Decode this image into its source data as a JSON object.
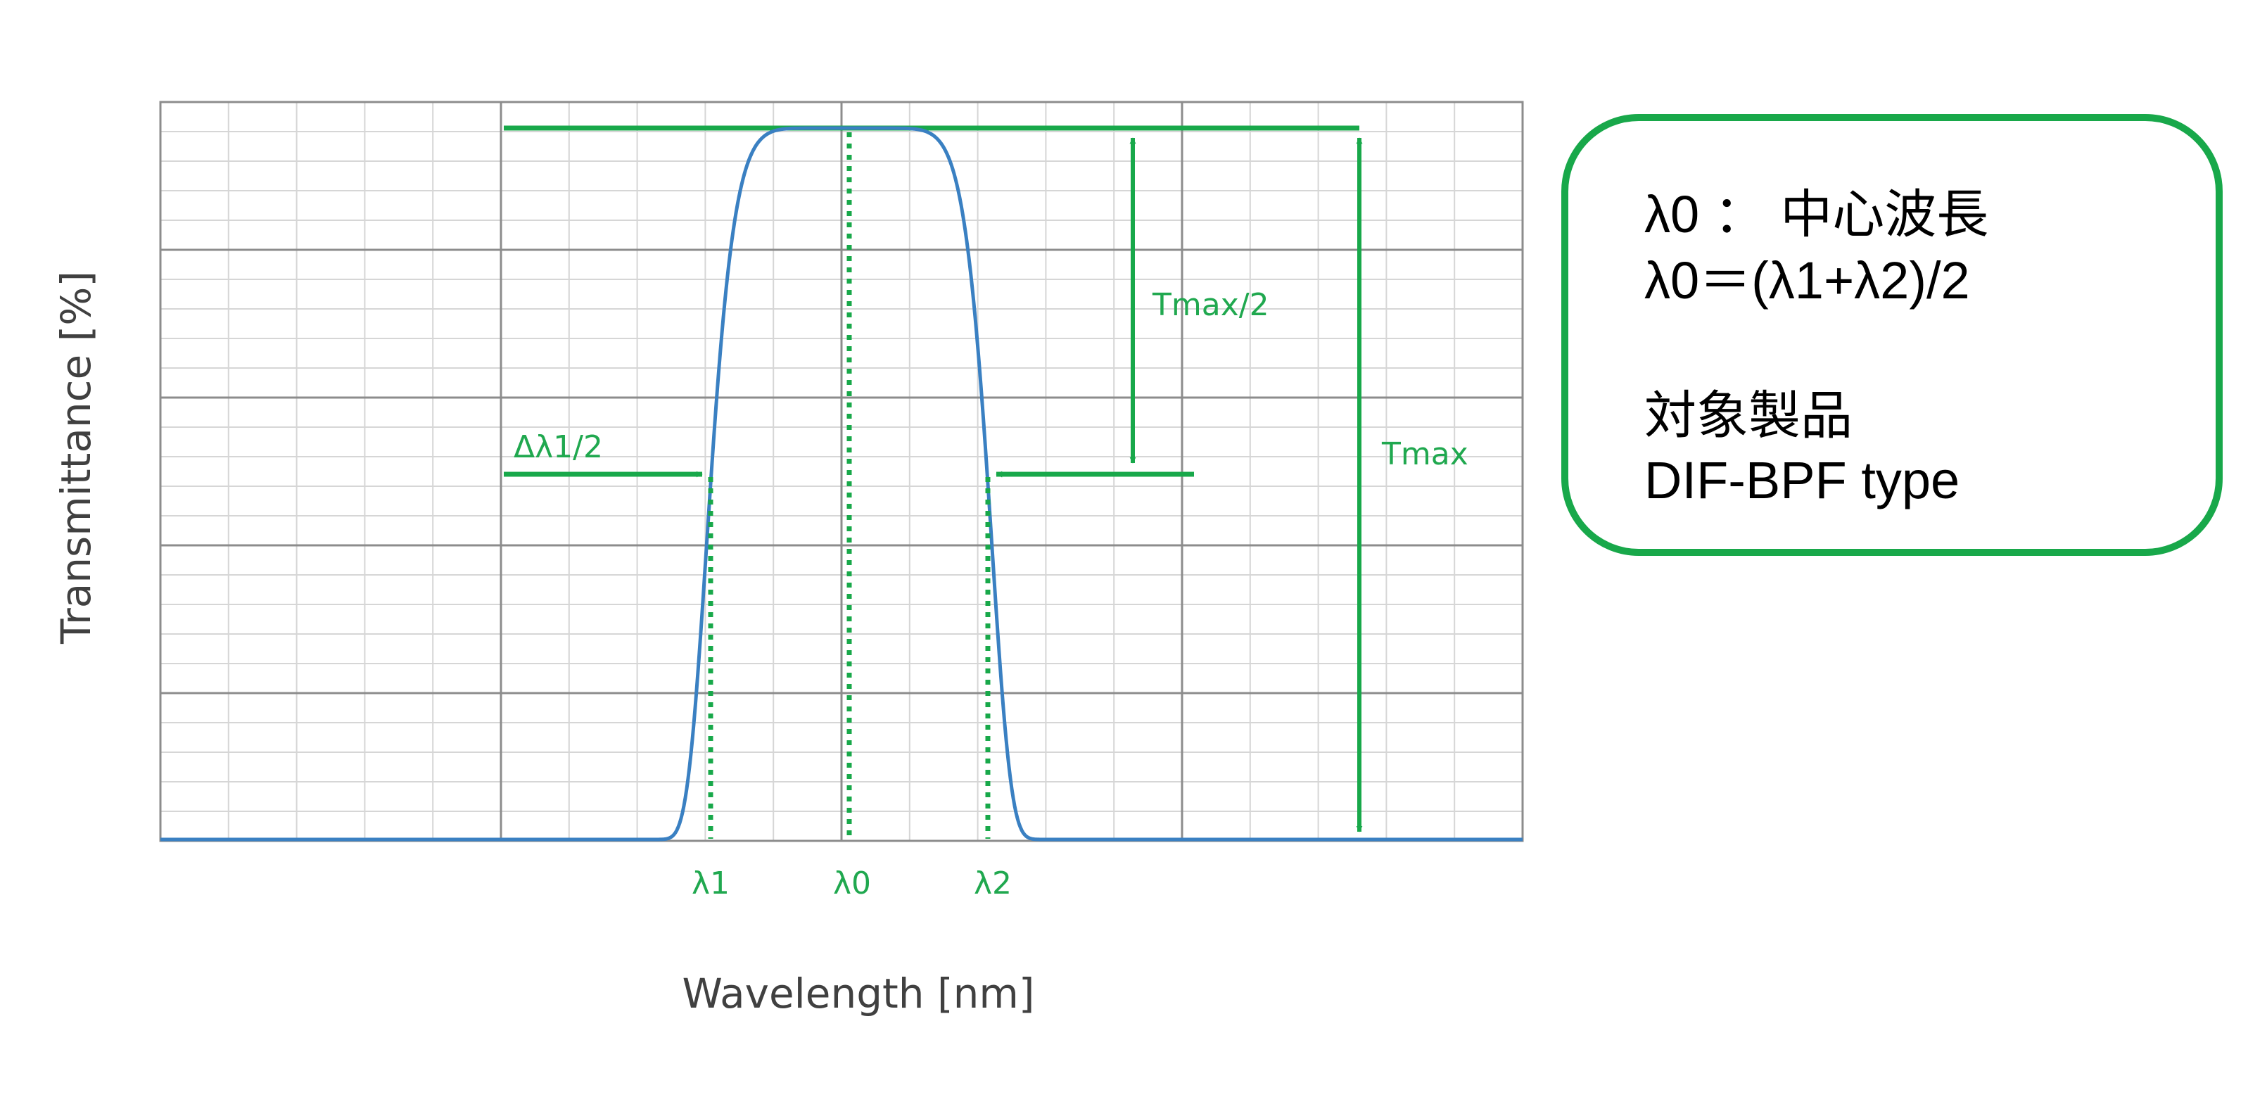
{
  "diagram": {
    "y_axis_label": "Transmittance [%]",
    "x_axis_label": "Wavelength [nm]",
    "markers": {
      "lambda1": "λ1",
      "lambda0": "λ0",
      "lambda2": "λ2"
    },
    "annotations": {
      "half_bandwidth": "Δλ1/2",
      "half_max": "Tmax/2",
      "max": "Tmax"
    },
    "colors": {
      "curve": "#3a80c2",
      "annotation": "#18a84a",
      "grid_major": "#8c8c8c",
      "grid_minor": "#d6d6d6"
    }
  },
  "info_box": {
    "definition": "λ0 ： 中心波長",
    "formula": "λ0＝(λ1+λ2)/2",
    "target_heading": "対象製品",
    "target_product": "DIF-BPF type"
  }
}
